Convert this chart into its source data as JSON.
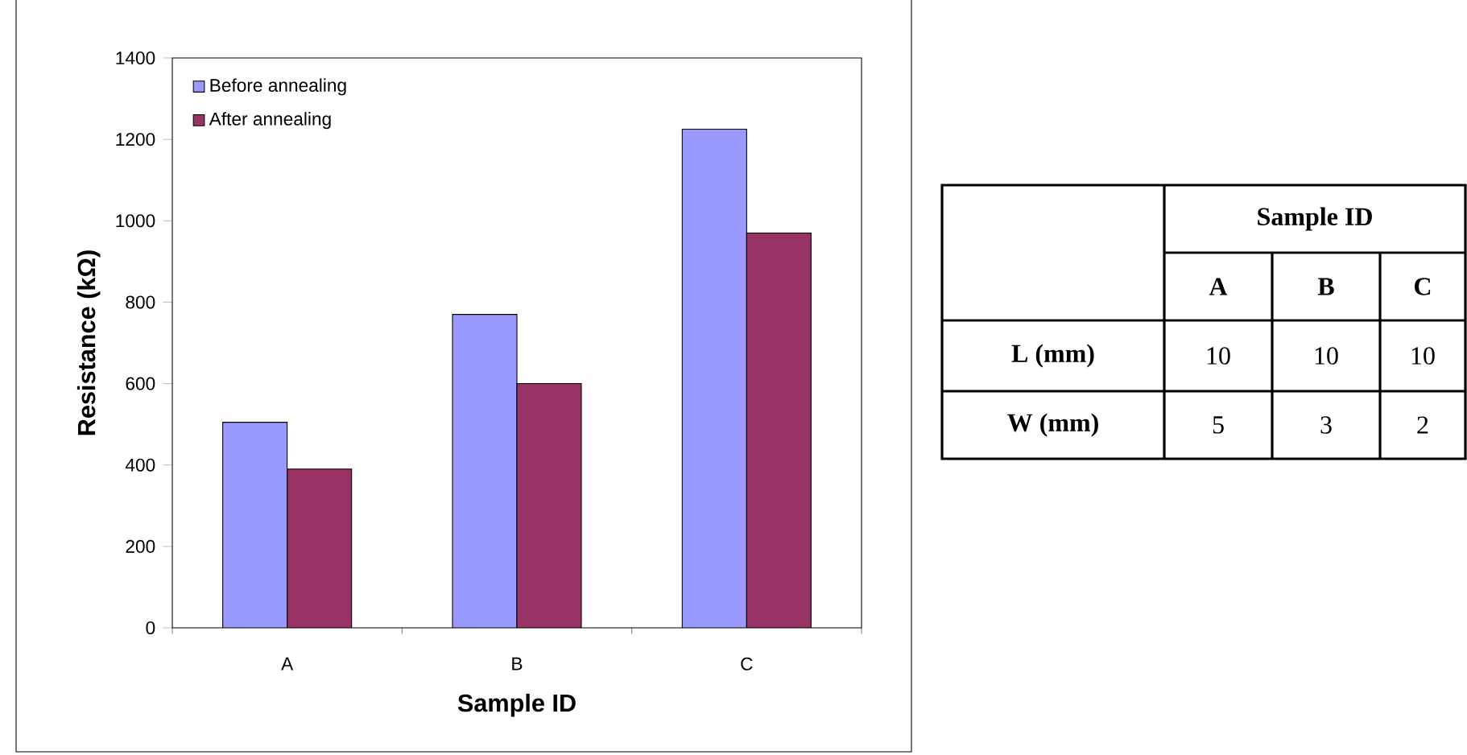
{
  "chart_data": [
    {
      "type": "bar",
      "xlabel": "Sample ID",
      "ylabel": "Resistance (kΩ)",
      "categories": [
        "A",
        "B",
        "C"
      ],
      "series": [
        {
          "name": "Before annealing",
          "color": "#9999ff",
          "values": [
            505,
            770,
            1225
          ]
        },
        {
          "name": "After annealing",
          "color": "#993366",
          "values": [
            390,
            600,
            970
          ]
        }
      ],
      "ylim": [
        0,
        1400
      ],
      "yticks": [
        0,
        200,
        400,
        600,
        800,
        1000,
        1200,
        1400
      ],
      "legend": "top left"
    },
    {
      "type": "other",
      "title": "Sample ID",
      "categories": [
        "A",
        "B",
        "C"
      ],
      "series": [
        {
          "name": "L (mm)",
          "values": [
            10,
            10,
            10
          ]
        },
        {
          "name": "W (mm)",
          "values": [
            5,
            3,
            2
          ]
        }
      ],
      "data_labels": true
    }
  ]
}
